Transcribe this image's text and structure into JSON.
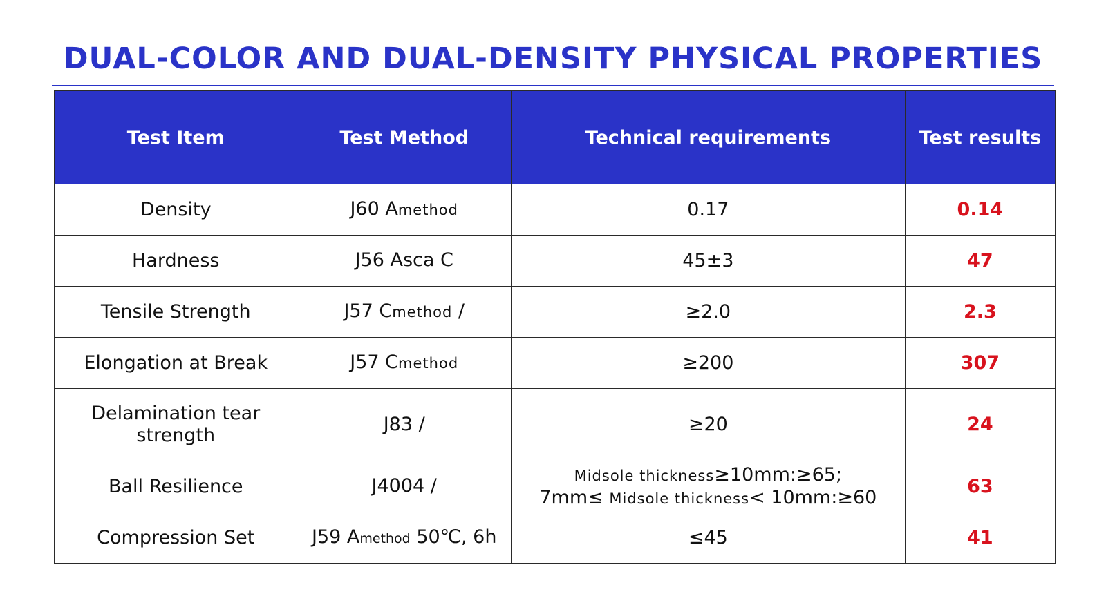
{
  "title": "DUAL-COLOR AND DUAL-DENSITY PHYSICAL PROPERTIES",
  "headers": {
    "item": "Test Item",
    "method": "Test Method",
    "requirements": "Technical requirements",
    "results": "Test results"
  },
  "rows": [
    {
      "item": "Density",
      "method_main": "J60 A",
      "method_sub": "method",
      "method_tail": "",
      "requirement": "0.17",
      "result": "0.14"
    },
    {
      "item": "Hardness",
      "method_main": "J56 Asca C",
      "method_sub": "",
      "method_tail": "",
      "requirement": "45±3",
      "result": "47"
    },
    {
      "item": "Tensile Strength",
      "method_main": "J57 C",
      "method_sub": "method",
      "method_tail": " /",
      "requirement": "≥2.0",
      "result": "2.3"
    },
    {
      "item": "Elongation at Break",
      "method_main": "J57 C",
      "method_sub": "method",
      "method_tail": "",
      "requirement": "≥200",
      "result": "307"
    },
    {
      "item": "Delamination tear strength",
      "method_main": "J83 /",
      "method_sub": "",
      "method_tail": "",
      "requirement": "≥20",
      "result": "24"
    },
    {
      "item": "Ball Resilience",
      "method_main": "J4004 /",
      "method_sub": "",
      "method_tail": "",
      "requirement_lines": [
        {
          "a": "Midsole thickness",
          "b": "≥10mm:≥65;"
        },
        {
          "a": "7mm≤ ",
          "b": "Midsole thickness",
          "c": "< 10mm:≥60"
        }
      ],
      "result": "63"
    },
    {
      "item": "Compression Set",
      "method_main": "J59 A",
      "method_sub": "method",
      "method_tail": " 50℃, 6h",
      "requirement": "≤45",
      "result": "41"
    }
  ],
  "colors": {
    "header_bg": "#2a33c8",
    "title": "#2a33c8",
    "result": "#d8121d"
  }
}
